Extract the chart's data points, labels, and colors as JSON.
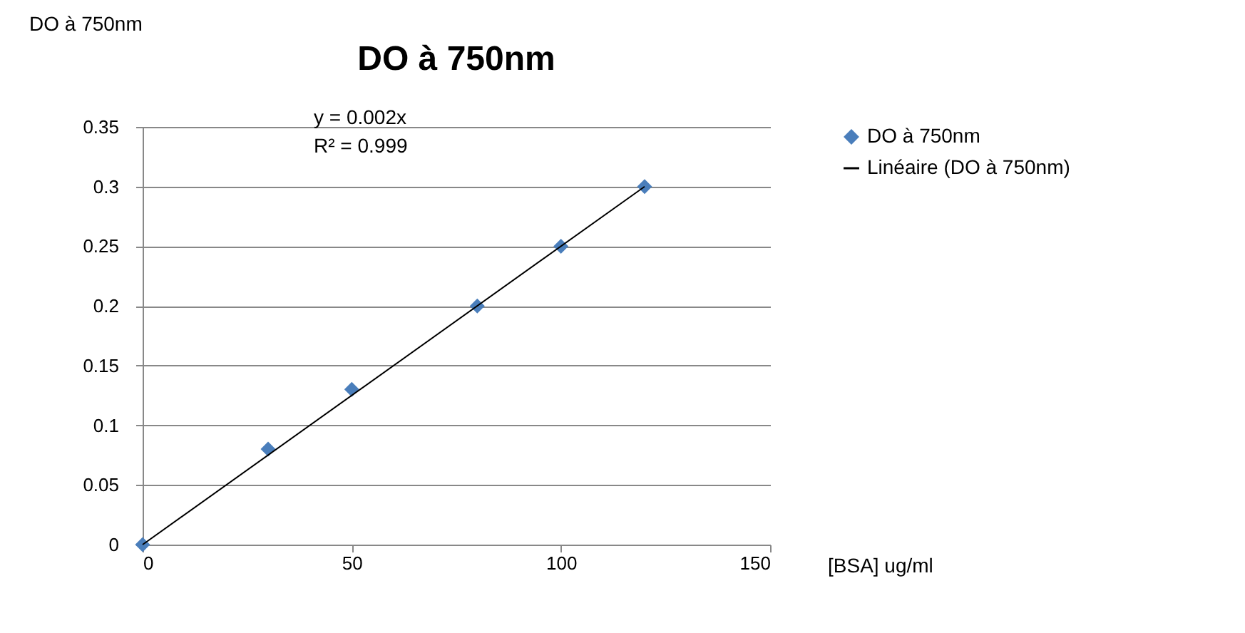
{
  "chart_data": {
    "type": "scatter",
    "title": "DO à 750nm",
    "xlabel": "[BSA] ug/ml",
    "ylabel": "DO à 750nm",
    "x": [
      0,
      30,
      50,
      80,
      100,
      120
    ],
    "series": [
      {
        "name": "DO à 750nm",
        "color": "#4a7ebb",
        "marker": "diamond",
        "values": [
          0,
          0.08,
          0.13,
          0.2,
          0.25,
          0.3
        ]
      },
      {
        "name": "Linéaire (DO à 750nm)",
        "type": "line",
        "color": "#000000",
        "line_style": "solid",
        "x": [
          0,
          120
        ],
        "values": [
          0,
          0.3
        ]
      }
    ],
    "annotations": [
      "y = 0.002x",
      "R² = 0.999"
    ],
    "xlim": [
      0,
      150
    ],
    "xticks": [
      0,
      50,
      100,
      150
    ],
    "ylim": [
      0,
      0.35
    ],
    "yticks": [
      0,
      0.05,
      0.1,
      0.15,
      0.2,
      0.25,
      0.3,
      0.35
    ],
    "grid": "y",
    "legend": "right"
  }
}
